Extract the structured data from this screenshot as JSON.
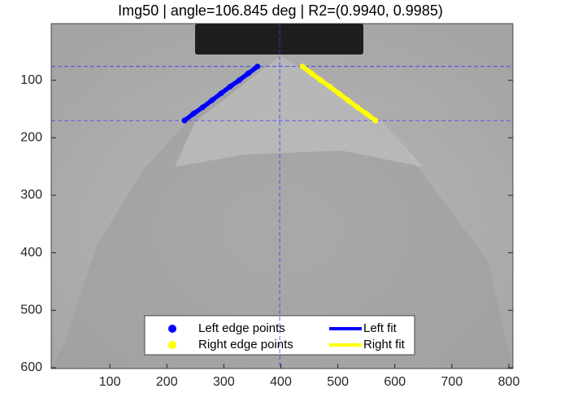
{
  "chart_data": {
    "type": "scatter",
    "title": "Img50 | angle=106.845 deg | R2=(0.9940, 0.9985)",
    "xlim": [
      0,
      800
    ],
    "ylim": [
      0,
      600
    ],
    "y_reversed": true,
    "xticks": [
      100,
      200,
      300,
      400,
      500,
      600,
      700,
      800
    ],
    "yticks": [
      100,
      200,
      300,
      400,
      500,
      600
    ],
    "reference_lines": {
      "x": [
        398
      ],
      "y": [
        76,
        170
      ],
      "color": "#3a3aff"
    },
    "legend": "bottom",
    "series": [
      {
        "name": "Left edge points",
        "type": "scatter",
        "color": "#0000ff",
        "x": [
          231,
          247,
          263,
          279,
          295,
          311,
          327,
          343,
          359
        ],
        "values": [
          170,
          158,
          147,
          135,
          123,
          111,
          100,
          88,
          76
        ]
      },
      {
        "name": "Right edge points",
        "type": "scatter",
        "color": "#ffff00",
        "x": [
          438,
          454,
          470,
          486,
          502,
          518,
          534,
          550,
          566
        ],
        "values": [
          76,
          88,
          100,
          111,
          123,
          135,
          147,
          158,
          170
        ]
      },
      {
        "name": "Left fit",
        "type": "line",
        "color": "#0000ff",
        "x": [
          231,
          359
        ],
        "values": [
          170,
          76
        ]
      },
      {
        "name": "Right fit",
        "type": "line",
        "color": "#ffff00",
        "x": [
          438,
          566
        ],
        "values": [
          76,
          170
        ]
      }
    ]
  }
}
